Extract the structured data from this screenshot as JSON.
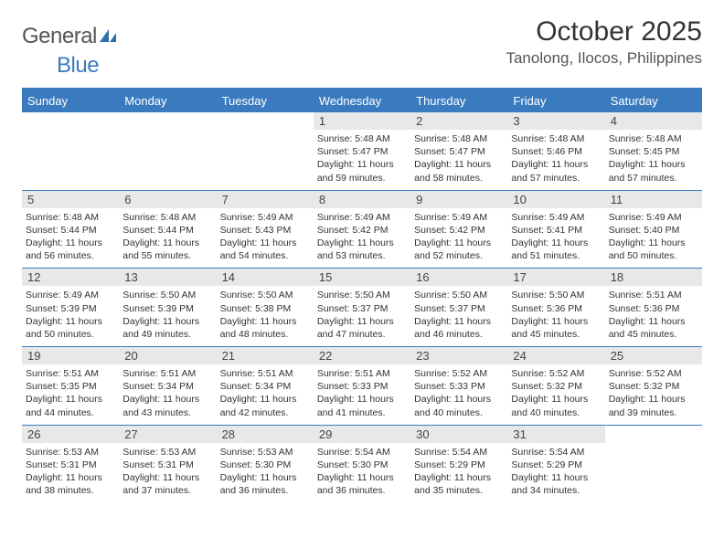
{
  "brand": {
    "word1": "General",
    "word2": "Blue"
  },
  "title": "October 2025",
  "location": "Tanolong, Ilocos, Philippines",
  "weekday_labels": [
    "Sunday",
    "Monday",
    "Tuesday",
    "Wednesday",
    "Thursday",
    "Friday",
    "Saturday"
  ],
  "colors": {
    "accent": "#3a7bbf",
    "header_text": "#ffffff",
    "daynum_bg": "#e8e8e8",
    "body_text": "#333333",
    "location_text": "#555555"
  },
  "weeks": [
    [
      {
        "day": "",
        "sunrise": "",
        "sunset": "",
        "daylight": ""
      },
      {
        "day": "",
        "sunrise": "",
        "sunset": "",
        "daylight": ""
      },
      {
        "day": "",
        "sunrise": "",
        "sunset": "",
        "daylight": ""
      },
      {
        "day": "1",
        "sunrise": "Sunrise: 5:48 AM",
        "sunset": "Sunset: 5:47 PM",
        "daylight": "Daylight: 11 hours and 59 minutes."
      },
      {
        "day": "2",
        "sunrise": "Sunrise: 5:48 AM",
        "sunset": "Sunset: 5:47 PM",
        "daylight": "Daylight: 11 hours and 58 minutes."
      },
      {
        "day": "3",
        "sunrise": "Sunrise: 5:48 AM",
        "sunset": "Sunset: 5:46 PM",
        "daylight": "Daylight: 11 hours and 57 minutes."
      },
      {
        "day": "4",
        "sunrise": "Sunrise: 5:48 AM",
        "sunset": "Sunset: 5:45 PM",
        "daylight": "Daylight: 11 hours and 57 minutes."
      }
    ],
    [
      {
        "day": "5",
        "sunrise": "Sunrise: 5:48 AM",
        "sunset": "Sunset: 5:44 PM",
        "daylight": "Daylight: 11 hours and 56 minutes."
      },
      {
        "day": "6",
        "sunrise": "Sunrise: 5:48 AM",
        "sunset": "Sunset: 5:44 PM",
        "daylight": "Daylight: 11 hours and 55 minutes."
      },
      {
        "day": "7",
        "sunrise": "Sunrise: 5:49 AM",
        "sunset": "Sunset: 5:43 PM",
        "daylight": "Daylight: 11 hours and 54 minutes."
      },
      {
        "day": "8",
        "sunrise": "Sunrise: 5:49 AM",
        "sunset": "Sunset: 5:42 PM",
        "daylight": "Daylight: 11 hours and 53 minutes."
      },
      {
        "day": "9",
        "sunrise": "Sunrise: 5:49 AM",
        "sunset": "Sunset: 5:42 PM",
        "daylight": "Daylight: 11 hours and 52 minutes."
      },
      {
        "day": "10",
        "sunrise": "Sunrise: 5:49 AM",
        "sunset": "Sunset: 5:41 PM",
        "daylight": "Daylight: 11 hours and 51 minutes."
      },
      {
        "day": "11",
        "sunrise": "Sunrise: 5:49 AM",
        "sunset": "Sunset: 5:40 PM",
        "daylight": "Daylight: 11 hours and 50 minutes."
      }
    ],
    [
      {
        "day": "12",
        "sunrise": "Sunrise: 5:49 AM",
        "sunset": "Sunset: 5:39 PM",
        "daylight": "Daylight: 11 hours and 50 minutes."
      },
      {
        "day": "13",
        "sunrise": "Sunrise: 5:50 AM",
        "sunset": "Sunset: 5:39 PM",
        "daylight": "Daylight: 11 hours and 49 minutes."
      },
      {
        "day": "14",
        "sunrise": "Sunrise: 5:50 AM",
        "sunset": "Sunset: 5:38 PM",
        "daylight": "Daylight: 11 hours and 48 minutes."
      },
      {
        "day": "15",
        "sunrise": "Sunrise: 5:50 AM",
        "sunset": "Sunset: 5:37 PM",
        "daylight": "Daylight: 11 hours and 47 minutes."
      },
      {
        "day": "16",
        "sunrise": "Sunrise: 5:50 AM",
        "sunset": "Sunset: 5:37 PM",
        "daylight": "Daylight: 11 hours and 46 minutes."
      },
      {
        "day": "17",
        "sunrise": "Sunrise: 5:50 AM",
        "sunset": "Sunset: 5:36 PM",
        "daylight": "Daylight: 11 hours and 45 minutes."
      },
      {
        "day": "18",
        "sunrise": "Sunrise: 5:51 AM",
        "sunset": "Sunset: 5:36 PM",
        "daylight": "Daylight: 11 hours and 45 minutes."
      }
    ],
    [
      {
        "day": "19",
        "sunrise": "Sunrise: 5:51 AM",
        "sunset": "Sunset: 5:35 PM",
        "daylight": "Daylight: 11 hours and 44 minutes."
      },
      {
        "day": "20",
        "sunrise": "Sunrise: 5:51 AM",
        "sunset": "Sunset: 5:34 PM",
        "daylight": "Daylight: 11 hours and 43 minutes."
      },
      {
        "day": "21",
        "sunrise": "Sunrise: 5:51 AM",
        "sunset": "Sunset: 5:34 PM",
        "daylight": "Daylight: 11 hours and 42 minutes."
      },
      {
        "day": "22",
        "sunrise": "Sunrise: 5:51 AM",
        "sunset": "Sunset: 5:33 PM",
        "daylight": "Daylight: 11 hours and 41 minutes."
      },
      {
        "day": "23",
        "sunrise": "Sunrise: 5:52 AM",
        "sunset": "Sunset: 5:33 PM",
        "daylight": "Daylight: 11 hours and 40 minutes."
      },
      {
        "day": "24",
        "sunrise": "Sunrise: 5:52 AM",
        "sunset": "Sunset: 5:32 PM",
        "daylight": "Daylight: 11 hours and 40 minutes."
      },
      {
        "day": "25",
        "sunrise": "Sunrise: 5:52 AM",
        "sunset": "Sunset: 5:32 PM",
        "daylight": "Daylight: 11 hours and 39 minutes."
      }
    ],
    [
      {
        "day": "26",
        "sunrise": "Sunrise: 5:53 AM",
        "sunset": "Sunset: 5:31 PM",
        "daylight": "Daylight: 11 hours and 38 minutes."
      },
      {
        "day": "27",
        "sunrise": "Sunrise: 5:53 AM",
        "sunset": "Sunset: 5:31 PM",
        "daylight": "Daylight: 11 hours and 37 minutes."
      },
      {
        "day": "28",
        "sunrise": "Sunrise: 5:53 AM",
        "sunset": "Sunset: 5:30 PM",
        "daylight": "Daylight: 11 hours and 36 minutes."
      },
      {
        "day": "29",
        "sunrise": "Sunrise: 5:54 AM",
        "sunset": "Sunset: 5:30 PM",
        "daylight": "Daylight: 11 hours and 36 minutes."
      },
      {
        "day": "30",
        "sunrise": "Sunrise: 5:54 AM",
        "sunset": "Sunset: 5:29 PM",
        "daylight": "Daylight: 11 hours and 35 minutes."
      },
      {
        "day": "31",
        "sunrise": "Sunrise: 5:54 AM",
        "sunset": "Sunset: 5:29 PM",
        "daylight": "Daylight: 11 hours and 34 minutes."
      },
      {
        "day": "",
        "sunrise": "",
        "sunset": "",
        "daylight": ""
      }
    ]
  ]
}
